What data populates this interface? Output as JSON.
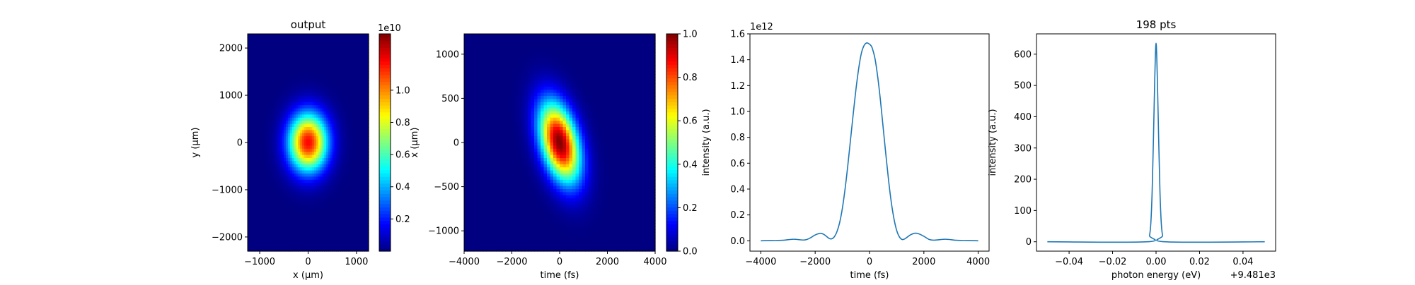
{
  "chart_data": [
    {
      "type": "heatmap",
      "title": "output",
      "xlabel": "x (μm)",
      "ylabel": "y (μm)",
      "xlim": [
        -1250,
        1250
      ],
      "ylim": [
        2300,
        -2300
      ],
      "xticks": [
        -1000,
        0,
        1000
      ],
      "yticks": [
        -2000,
        -1000,
        0,
        1000,
        2000
      ],
      "colormap": "jet",
      "colorbar": {
        "scale_label": "1e10",
        "range": [
          0,
          1.35
        ],
        "ticks": [
          0.2,
          0.4,
          0.6,
          0.8,
          1.0
        ],
        "tick_labels": [
          "0.2",
          "0.4",
          "0.6",
          "0.8",
          "1.0"
        ]
      },
      "spot": {
        "center": [
          0,
          0
        ],
        "sigma_x": 280,
        "sigma_y": 430
      }
    },
    {
      "type": "heatmap",
      "title": "",
      "xlabel": "time (fs)",
      "ylabel": "x (μm)",
      "xlim": [
        -4000,
        4000
      ],
      "ylim": [
        1230,
        -1230
      ],
      "xticks": [
        -4000,
        -2000,
        0,
        2000,
        4000
      ],
      "yticks": [
        -1000,
        -500,
        0,
        500,
        1000
      ],
      "colormap": "jet",
      "colorbar": {
        "scale_label": "",
        "range": [
          0,
          1.0
        ],
        "ticks": [
          0.0,
          0.2,
          0.4,
          0.6,
          0.8,
          1.0
        ],
        "tick_labels": [
          "0.0",
          "0.2",
          "0.4",
          "0.6",
          "0.8",
          "1.0"
        ]
      },
      "spot": {
        "center": [
          0,
          0
        ],
        "sigma_t": 540,
        "sigma_x": 310,
        "tilt_fs_per_um": -0.75
      }
    },
    {
      "type": "line",
      "title": "",
      "xlabel": "time (fs)",
      "ylabel": "intensity (a.u.)",
      "offset_label": "1e12",
      "xlim": [
        -4400,
        4400
      ],
      "ylim": [
        -0.08,
        1.6
      ],
      "xticks": [
        -4000,
        -2000,
        0,
        2000,
        4000
      ],
      "yticks": [
        0.0,
        0.2,
        0.4,
        0.6,
        0.8,
        1.0,
        1.2,
        1.4,
        1.6
      ],
      "ytick_labels": [
        "0.0",
        "0.2",
        "0.4",
        "0.6",
        "0.8",
        "1.0",
        "1.2",
        "1.4",
        "1.6"
      ],
      "series": [
        {
          "color": "#1f77b4",
          "x": [
            -4000,
            -3600,
            -3200,
            -2800,
            -2400,
            -2200,
            -2000,
            -1800,
            -1650,
            -1500,
            -1400,
            -1300,
            -1200,
            -1100,
            -1000,
            -900,
            -800,
            -700,
            -600,
            -500,
            -400,
            -300,
            -200,
            -100,
            0,
            50,
            100,
            200,
            300,
            400,
            500,
            600,
            700,
            800,
            900,
            1000,
            1100,
            1200,
            1300,
            1400,
            1500,
            1650,
            1800,
            2000,
            2200,
            2400,
            2800,
            3200,
            3600,
            4000
          ],
          "y": [
            0,
            0.002,
            0.004,
            0.012,
            0.006,
            0.02,
            0.045,
            0.058,
            0.045,
            0.02,
            0.015,
            0.03,
            0.07,
            0.14,
            0.25,
            0.4,
            0.58,
            0.78,
            0.98,
            1.17,
            1.33,
            1.45,
            1.51,
            1.53,
            1.52,
            1.51,
            1.49,
            1.41,
            1.27,
            1.09,
            0.88,
            0.67,
            0.47,
            0.3,
            0.17,
            0.08,
            0.03,
            0.01,
            0.015,
            0.03,
            0.045,
            0.058,
            0.055,
            0.035,
            0.01,
            0.005,
            0.012,
            0.004,
            0.002,
            0
          ]
        }
      ]
    },
    {
      "type": "line",
      "title": "198 pts",
      "xlabel": "photon energy (eV)",
      "ylabel": "intensity (a.u.)",
      "offset_label": "+9.481e3",
      "xlim": [
        -0.055,
        0.055
      ],
      "ylim": [
        -30,
        665
      ],
      "xticks": [
        -0.04,
        -0.02,
        0.0,
        0.02,
        0.04
      ],
      "xtick_labels": [
        "−0.04",
        "−0.02",
        "0.00",
        "0.02",
        "0.04"
      ],
      "yticks": [
        0,
        100,
        200,
        300,
        400,
        500,
        600
      ],
      "series": [
        {
          "color": "#1f77b4",
          "x": [
            -0.05,
            -0.004,
            -0.003,
            -0.0024,
            -0.0018,
            -0.0012,
            -0.0006,
            0,
            0.0006,
            0.0012,
            0.0018,
            0.0024,
            0.003,
            0.004,
            0.05
          ],
          "y": [
            0,
            0,
            20,
            60,
            160,
            330,
            520,
            635,
            520,
            330,
            160,
            60,
            20,
            0,
            0
          ]
        }
      ]
    }
  ]
}
